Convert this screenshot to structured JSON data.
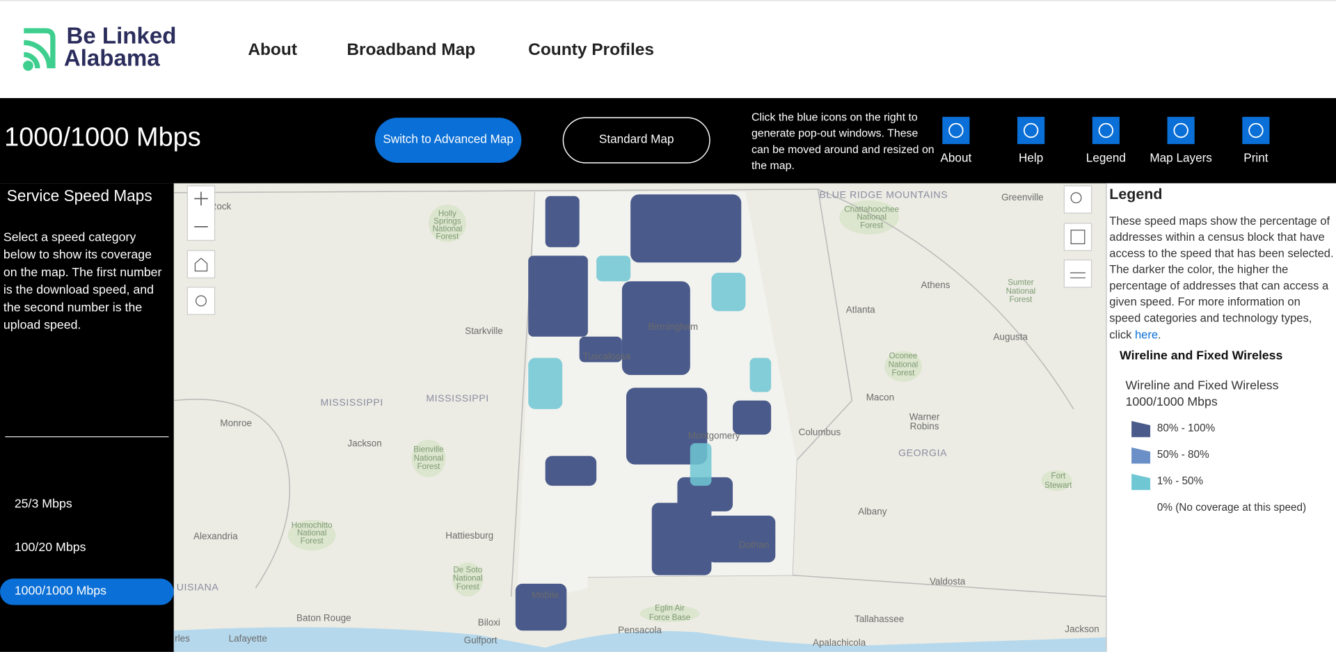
{
  "header": {
    "logo": [
      "Be Linked",
      "Alabama"
    ],
    "nav": [
      "About",
      "Broadband Map",
      "County Profiles"
    ]
  },
  "toolbar": {
    "title": "1000/1000 Mbps",
    "buttons": [
      "Switch to Advanced Map",
      "Standard Map"
    ],
    "instructions": [
      "Click the blue icons on the right to",
      "generate pop-out windows. These",
      "can be moved around and resized on",
      "the map."
    ],
    "icons": [
      "About",
      "Help",
      "Legend",
      "Map Layers",
      "Print"
    ]
  },
  "sidebar": {
    "title": "Service Speed Maps",
    "description": [
      "Select a speed category",
      "below to show its coverage",
      "on the map. The first number",
      "is the download speed, and",
      "the second number is the",
      "upload speed."
    ],
    "options": [
      "25/3 Mbps",
      "100/20 Mbps",
      "1000/1000 Mbps"
    ]
  },
  "legend": {
    "title": "Legend",
    "description": [
      "These speed maps show the percentage of",
      "addresses within a census block that have",
      "access to the speed that has been selected.",
      "The darker the color, the higher the",
      "percentage of addresses that can access a",
      "given speed. For more information on",
      "speed categories and technology types,"
    ],
    "click_text": "click ",
    "link": "here",
    "end": ".",
    "section": "Wireline and Fixed Wireless",
    "subtitle": [
      "Wireline and Fixed Wireless",
      "1000/1000 Mbps"
    ],
    "items": [
      "80% - 100%",
      "50% - 80%",
      "1% - 50%",
      "0% (No coverage at this speed)"
    ]
  },
  "map": {
    "labels": [
      "ttle Rock",
      "BLUE RIDGE MOUNTAINS",
      "Greenville",
      "Starkville",
      "Athens",
      "Atlanta",
      "Augusta",
      "MISSISSIPPI",
      "MISSISSIPPI",
      "Macon",
      "Monroe",
      "Warner",
      "Robins",
      "Columbus",
      "Jackson",
      "GEORGIA",
      "Albany",
      "Alexandria",
      "Hattiesburg",
      "Valdosta",
      "UISIANA",
      "Baton Rouge",
      "Biloxi",
      "Pensacola",
      "Tallahassee",
      "Jackson",
      "Lafayette",
      "Gulfport",
      "rles",
      "Apalachicola",
      "Birmingham",
      "Tuscaloosa",
      "Montgomery",
      "Dothan",
      "Mobile"
    ],
    "forests": [
      "Holly",
      "Springs",
      "National",
      "Forest",
      "Chattahoochee",
      "National",
      "Forest",
      "Sumter",
      "National",
      "Forest",
      "Oconee",
      "National",
      "Forest",
      "Bienville",
      "National",
      "Forest",
      "Homochitto",
      "National",
      "Forest",
      "De Soto",
      "National",
      "Forest",
      "Fort",
      "Stewart",
      "Eglin Air",
      "Force Base"
    ]
  }
}
